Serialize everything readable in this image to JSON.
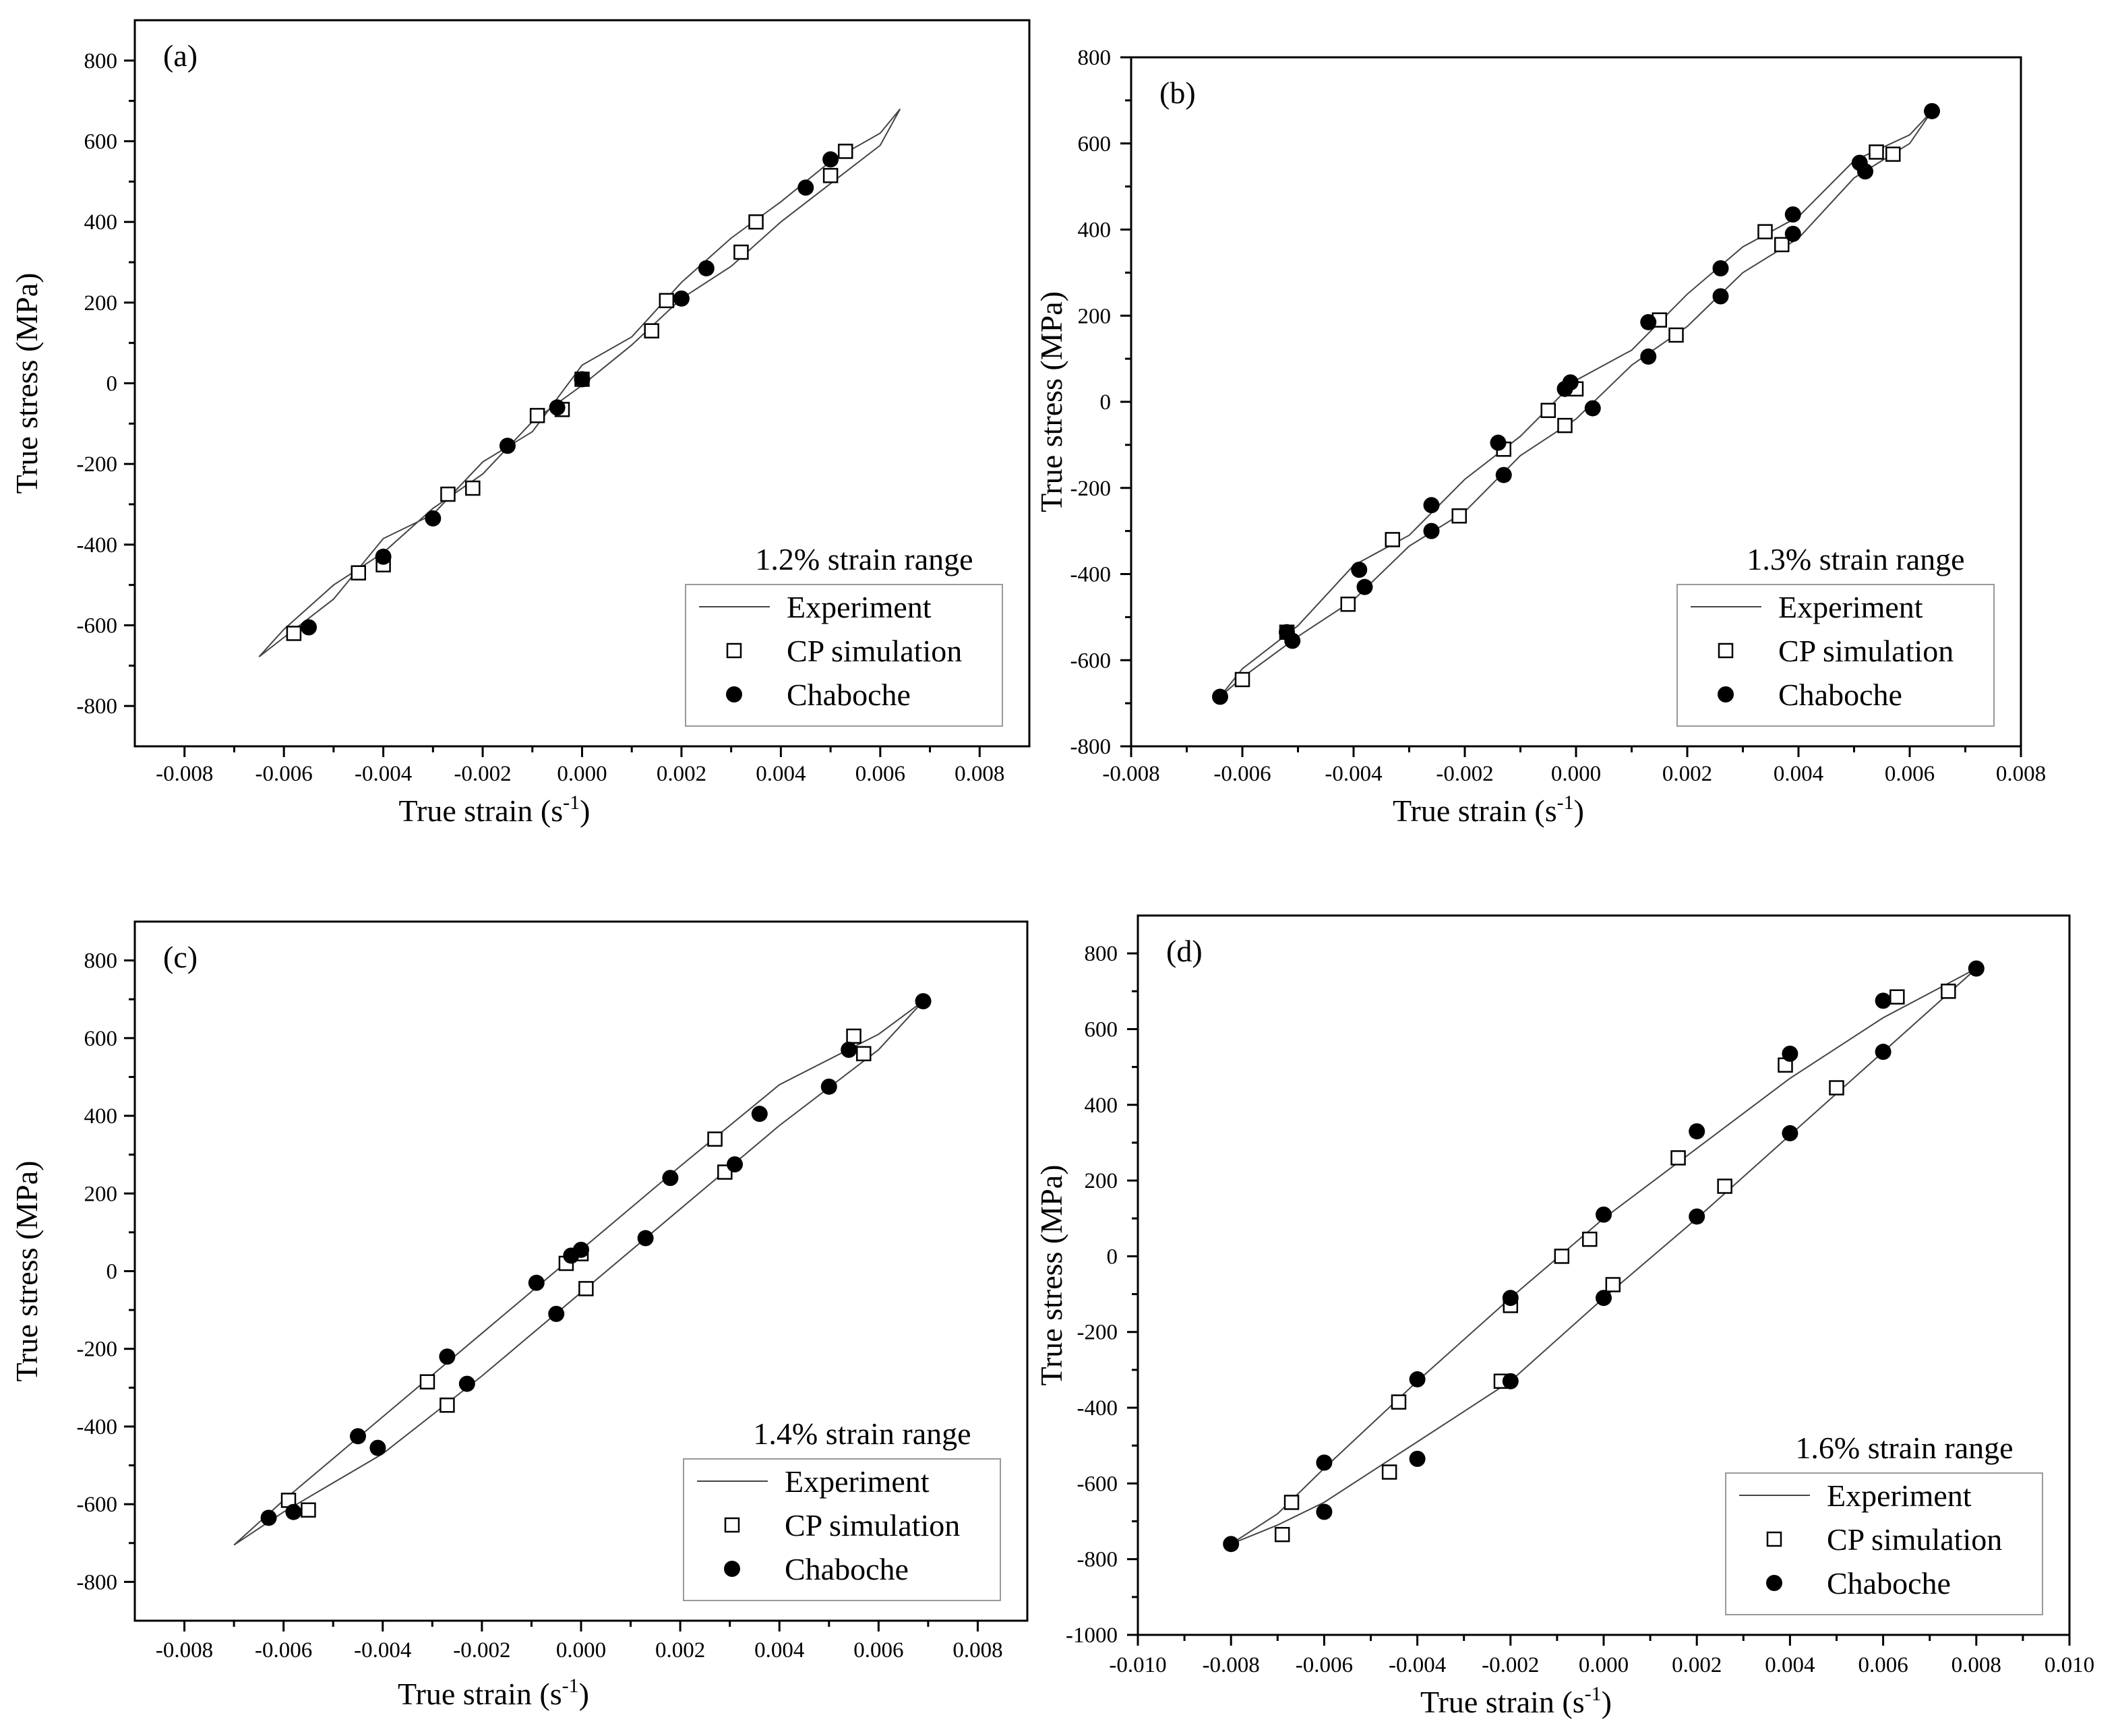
{
  "figure": {
    "chart_data": [
      {
        "type": "scatter",
        "panel_label": "(a)",
        "range_label": "1.2% strain range",
        "xlabel": "True strain (s",
        "xlabel_sup": "-1",
        "xlabel_close": ")",
        "ylabel": "True stress (MPa)",
        "xlim": [
          -0.009,
          0.009
        ],
        "ylim": [
          -900,
          900
        ],
        "xticks": [
          -0.008,
          -0.006,
          -0.004,
          -0.002,
          0.0,
          0.002,
          0.004,
          0.006,
          0.008
        ],
        "xtick_labels": [
          "-0.008",
          "-0.006",
          "-0.004",
          "-0.002",
          "0.000",
          "0.002",
          "0.004",
          "0.006",
          "0.008"
        ],
        "yticks": [
          -800,
          -600,
          -400,
          -200,
          0,
          200,
          400,
          600,
          800
        ],
        "ytick_labels": [
          "-800",
          "-600",
          "-400",
          "-200",
          "0",
          "200",
          "400",
          "600",
          "800"
        ],
        "legend": {
          "position": "bottom-right",
          "entries": [
            "Experiment",
            "CP simulation",
            "Chaboche"
          ]
        },
        "series": [
          {
            "name": "Experiment",
            "kind": "line",
            "x": [
              -0.0065,
              -0.006,
              -0.005,
              -0.004,
              -0.003,
              -0.002,
              -0.001,
              0.0,
              0.001,
              0.002,
              0.003,
              0.004,
              0.005,
              0.006,
              0.0064,
              0.006,
              0.005,
              0.004,
              0.003,
              0.002,
              0.001,
              0.0,
              -0.001,
              -0.002,
              -0.003,
              -0.004,
              -0.005,
              -0.006,
              -0.0065
            ],
            "y": [
              -678,
              -630,
              -535,
              -385,
              -325,
              -195,
              -120,
              45,
              115,
              250,
              360,
              450,
              550,
              620,
              680,
              590,
              495,
              400,
              290,
              210,
              95,
              -5,
              -95,
              -225,
              -310,
              -420,
              -500,
              -610,
              -678
            ]
          },
          {
            "name": "CP simulation",
            "kind": "open-square",
            "x": [
              -0.0058,
              -0.0045,
              -0.004,
              -0.0027,
              -0.0022,
              -0.0009,
              -0.0004,
              0.0,
              0.0014,
              0.0017,
              0.0032,
              0.0035,
              0.005,
              0.0053
            ],
            "y": [
              -620,
              -470,
              -450,
              -275,
              -260,
              -80,
              -65,
              10,
              130,
              205,
              325,
              400,
              515,
              575
            ]
          },
          {
            "name": "Chaboche",
            "kind": "filled-circle",
            "x": [
              -0.0055,
              -0.004,
              -0.003,
              -0.0015,
              -0.0005,
              0.0,
              0.002,
              0.0025,
              0.0045,
              0.005
            ],
            "y": [
              -605,
              -430,
              -335,
              -155,
              -60,
              10,
              210,
              285,
              485,
              555
            ]
          }
        ]
      },
      {
        "type": "scatter",
        "panel_label": "(b)",
        "range_label": "1.3% strain range",
        "xlabel": "True strain (s",
        "xlabel_sup": "-1",
        "xlabel_close": ")",
        "ylabel": "True stress (MPa)",
        "xlim": [
          -0.008,
          0.008
        ],
        "ylim": [
          -800,
          800
        ],
        "xticks": [
          -0.008,
          -0.006,
          -0.004,
          -0.002,
          0.0,
          0.002,
          0.004,
          0.006,
          0.008
        ],
        "xtick_labels": [
          "-0.008",
          "-0.006",
          "-0.004",
          "-0.002",
          "0.000",
          "0.002",
          "0.004",
          "0.006",
          "0.008"
        ],
        "yticks": [
          -800,
          -600,
          -400,
          -200,
          0,
          200,
          400,
          600,
          800
        ],
        "ytick_labels": [
          "-800",
          "-600",
          "-400",
          "-200",
          "0",
          "200",
          "400",
          "600",
          "800"
        ],
        "legend": {
          "position": "bottom-right",
          "entries": [
            "Experiment",
            "CP simulation",
            "Chaboche"
          ]
        },
        "series": [
          {
            "name": "Experiment",
            "kind": "line",
            "x": [
              -0.0064,
              -0.006,
              -0.005,
              -0.004,
              -0.003,
              -0.002,
              -0.001,
              0.0,
              0.001,
              0.002,
              0.003,
              0.004,
              0.005,
              0.006,
              0.0064,
              0.006,
              0.005,
              0.004,
              0.003,
              0.002,
              0.001,
              0.0,
              -0.001,
              -0.002,
              -0.003,
              -0.004,
              -0.005,
              -0.006,
              -0.0064
            ],
            "y": [
              -685,
              -620,
              -520,
              -380,
              -310,
              -180,
              -80,
              50,
              120,
              250,
              360,
              430,
              560,
              620,
              675,
              600,
              520,
              380,
              300,
              175,
              85,
              -40,
              -125,
              -255,
              -335,
              -460,
              -545,
              -640,
              -685
            ]
          },
          {
            "name": "CP simulation",
            "kind": "open-square",
            "x": [
              -0.006,
              -0.0052,
              -0.0041,
              -0.0033,
              -0.0021,
              -0.0013,
              -0.0005,
              -0.0002,
              0.0,
              0.0015,
              0.0018,
              0.0034,
              0.0037,
              0.0054,
              0.0057
            ],
            "y": [
              -645,
              -535,
              -470,
              -320,
              -265,
              -110,
              -20,
              -55,
              30,
              190,
              155,
              395,
              365,
              580,
              575
            ]
          },
          {
            "name": "Chaboche",
            "kind": "filled-circle",
            "x": [
              -0.0064,
              -0.0052,
              -0.0051,
              -0.0039,
              -0.0038,
              -0.0026,
              -0.0026,
              -0.0014,
              -0.0013,
              -0.0002,
              -0.0001,
              0.0003,
              0.0013,
              0.0013,
              0.0026,
              0.0026,
              0.0039,
              0.0039,
              0.0051,
              0.0052,
              0.0064
            ],
            "y": [
              -685,
              -535,
              -555,
              -390,
              -430,
              -240,
              -300,
              -95,
              -170,
              30,
              45,
              -15,
              185,
              105,
              310,
              245,
              435,
              390,
              555,
              535,
              675
            ]
          }
        ]
      },
      {
        "type": "scatter",
        "panel_label": "(c)",
        "range_label": "1.4% strain range",
        "xlabel": "True strain (s",
        "xlabel_sup": "-1",
        "xlabel_close": ")",
        "ylabel": "True stress (MPa)",
        "xlim": [
          -0.009,
          0.009
        ],
        "ylim": [
          -900,
          900
        ],
        "xticks": [
          -0.008,
          -0.006,
          -0.004,
          -0.002,
          0.0,
          0.002,
          0.004,
          0.006,
          0.008
        ],
        "xtick_labels": [
          "-0.008",
          "-0.006",
          "-0.004",
          "-0.002",
          "0.000",
          "0.002",
          "0.004",
          "0.006",
          "0.008"
        ],
        "yticks": [
          -800,
          -600,
          -400,
          -200,
          0,
          200,
          400,
          600,
          800
        ],
        "ytick_labels": [
          "-800",
          "-600",
          "-400",
          "-200",
          "0",
          "200",
          "400",
          "600",
          "800"
        ],
        "legend": {
          "position": "bottom-right",
          "entries": [
            "Experiment",
            "CP simulation",
            "Chaboche"
          ]
        },
        "series": [
          {
            "name": "Experiment",
            "kind": "line",
            "x": [
              -0.007,
              -0.006,
              -0.004,
              -0.002,
              0.0,
              0.002,
              0.004,
              0.006,
              0.0069,
              0.006,
              0.004,
              0.002,
              0.0,
              -0.002,
              -0.004,
              -0.006,
              -0.007
            ],
            "y": [
              -705,
              -590,
              -375,
              -160,
              55,
              270,
              480,
              610,
              695,
              570,
              375,
              160,
              -55,
              -270,
              -470,
              -620,
              -705
            ]
          },
          {
            "name": "CP simulation",
            "kind": "open-square",
            "x": [
              -0.0059,
              -0.0055,
              -0.0031,
              -0.0027,
              -0.0003,
              0.0,
              0.0001,
              0.0027,
              0.0029,
              0.0055,
              0.0057
            ],
            "y": [
              -590,
              -615,
              -285,
              -345,
              20,
              45,
              -45,
              340,
              255,
              605,
              560
            ]
          },
          {
            "name": "Chaboche",
            "kind": "filled-circle",
            "x": [
              -0.0063,
              -0.0058,
              -0.0045,
              -0.0041,
              -0.0027,
              -0.0023,
              -0.0009,
              -0.0005,
              -0.0002,
              0.0,
              0.0013,
              0.0018,
              0.0031,
              0.0036,
              0.005,
              0.0054,
              0.0069
            ],
            "y": [
              -635,
              -620,
              -425,
              -455,
              -220,
              -290,
              -30,
              -110,
              40,
              55,
              85,
              240,
              275,
              405,
              475,
              570,
              695
            ]
          }
        ]
      },
      {
        "type": "scatter",
        "panel_label": "(d)",
        "range_label": "1.6% strain range",
        "xlabel": "True strain (s",
        "xlabel_sup": "-1",
        "xlabel_close": ")",
        "ylabel": "True stress (MPa)",
        "xlim": [
          -0.01,
          0.01
        ],
        "ylim": [
          -1000,
          900
        ],
        "xticks": [
          -0.01,
          -0.008,
          -0.006,
          -0.004,
          -0.002,
          0.0,
          0.002,
          0.004,
          0.006,
          0.008,
          0.01
        ],
        "xtick_labels": [
          "-0.010",
          "-0.008",
          "-0.006",
          "-0.004",
          "-0.002",
          "0.000",
          "0.002",
          "0.004",
          "0.006",
          "0.008",
          "0.010"
        ],
        "yticks": [
          -1000,
          -800,
          -600,
          -400,
          -200,
          0,
          200,
          400,
          600,
          800
        ],
        "ytick_labels": [
          "-1000",
          "-800",
          "-600",
          "-400",
          "-200",
          "0",
          "200",
          "400",
          "600",
          "800"
        ],
        "legend": {
          "position": "bottom-right",
          "entries": [
            "Experiment",
            "CP simulation",
            "Chaboche"
          ]
        },
        "series": [
          {
            "name": "Experiment",
            "kind": "line",
            "x": [
              -0.008,
              -0.007,
              -0.006,
              -0.004,
              -0.002,
              0.0,
              0.002,
              0.004,
              0.006,
              0.008,
              0.006,
              0.004,
              0.002,
              0.0,
              -0.002,
              -0.004,
              -0.006,
              -0.007,
              -0.008
            ],
            "y": [
              -760,
              -680,
              -560,
              -330,
              -110,
              100,
              285,
              470,
              630,
              760,
              540,
              320,
              100,
              -110,
              -330,
              -490,
              -650,
              -710,
              -760
            ]
          },
          {
            "name": "CP simulation",
            "kind": "open-square",
            "x": [
              -0.0069,
              -0.0067,
              -0.0046,
              -0.0044,
              -0.0022,
              -0.002,
              -0.0009,
              -0.0003,
              0.0002,
              0.0016,
              0.0026,
              0.0039,
              0.005,
              0.0063,
              0.0074
            ],
            "y": [
              -735,
              -650,
              -570,
              -385,
              -330,
              -130,
              0,
              45,
              -75,
              260,
              185,
              505,
              445,
              685,
              700
            ]
          },
          {
            "name": "Chaboche",
            "kind": "filled-circle",
            "x": [
              -0.008,
              -0.006,
              -0.006,
              -0.004,
              -0.004,
              -0.002,
              -0.002,
              0.0,
              0.0,
              0.002,
              0.002,
              0.004,
              0.004,
              0.006,
              0.006,
              0.008
            ],
            "y": [
              -760,
              -545,
              -675,
              -325,
              -535,
              -110,
              -330,
              110,
              -110,
              330,
              105,
              535,
              325,
              675,
              540,
              760
            ]
          }
        ]
      }
    ]
  }
}
